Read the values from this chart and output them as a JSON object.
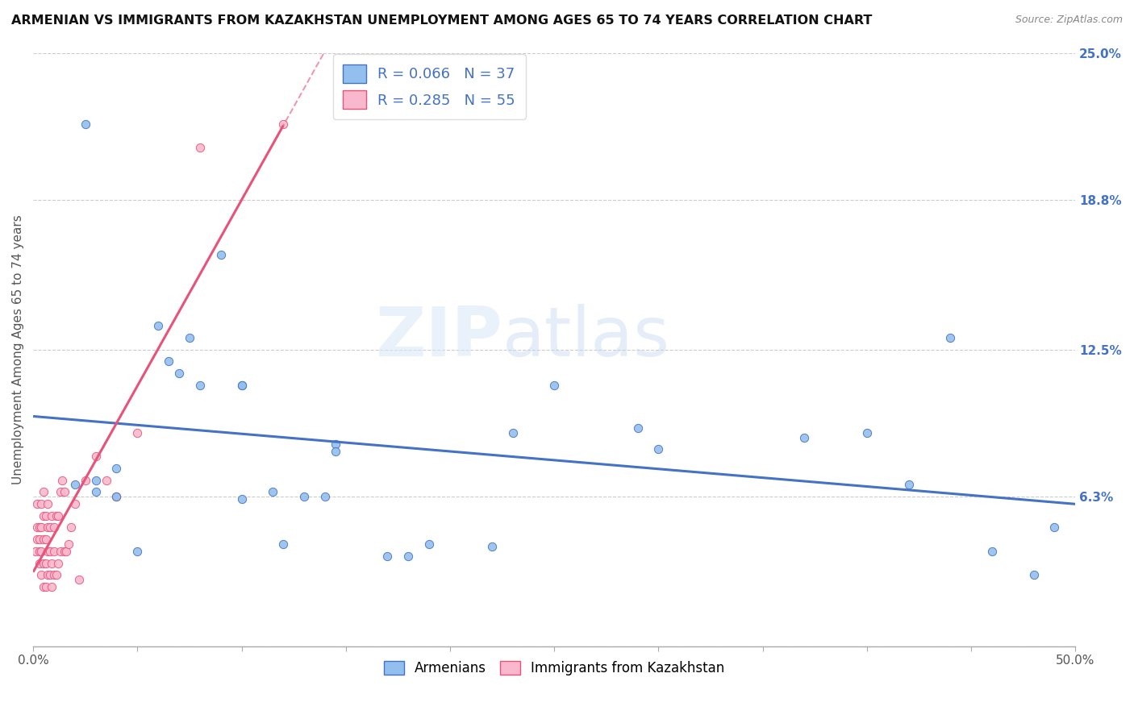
{
  "title": "ARMENIAN VS IMMIGRANTS FROM KAZAKHSTAN UNEMPLOYMENT AMONG AGES 65 TO 74 YEARS CORRELATION CHART",
  "source": "Source: ZipAtlas.com",
  "ylabel": "Unemployment Among Ages 65 to 74 years",
  "xlim": [
    0.0,
    0.5
  ],
  "ylim": [
    0.0,
    0.25
  ],
  "xticks": [
    0.0,
    0.05,
    0.1,
    0.15,
    0.2,
    0.25,
    0.3,
    0.35,
    0.4,
    0.45,
    0.5
  ],
  "xtick_labels_show": [
    "0.0%",
    "",
    "",
    "",
    "",
    "",
    "",
    "",
    "",
    "",
    "50.0%"
  ],
  "ytick_labels_right": [
    "",
    "6.3%",
    "12.5%",
    "18.8%",
    "25.0%"
  ],
  "yticks_right": [
    0.0,
    0.063,
    0.125,
    0.188,
    0.25
  ],
  "R_armenian": 0.066,
  "N_armenian": 37,
  "R_kazakhstan": 0.285,
  "N_kazakhstan": 55,
  "color_armenian": "#92BFED",
  "color_kazakhstan": "#F9B8CD",
  "color_line_armenian": "#4472C4",
  "color_line_kazakhstan": "#E8537A",
  "legend_armenian": "Armenians",
  "legend_kazakhstan": "Immigrants from Kazakhstan",
  "background_color": "#FFFFFF",
  "armenian_x": [
    0.02,
    0.025,
    0.03,
    0.03,
    0.04,
    0.04,
    0.05,
    0.06,
    0.065,
    0.07,
    0.075,
    0.08,
    0.09,
    0.1,
    0.1,
    0.1,
    0.115,
    0.12,
    0.13,
    0.14,
    0.145,
    0.145,
    0.17,
    0.18,
    0.19,
    0.22,
    0.23,
    0.25,
    0.29,
    0.3,
    0.37,
    0.4,
    0.42,
    0.44,
    0.46,
    0.48,
    0.49
  ],
  "armenian_y": [
    0.068,
    0.22,
    0.07,
    0.065,
    0.075,
    0.063,
    0.04,
    0.135,
    0.12,
    0.115,
    0.13,
    0.11,
    0.165,
    0.11,
    0.11,
    0.062,
    0.065,
    0.043,
    0.063,
    0.063,
    0.085,
    0.082,
    0.038,
    0.038,
    0.043,
    0.042,
    0.09,
    0.11,
    0.092,
    0.083,
    0.088,
    0.09,
    0.068,
    0.13,
    0.04,
    0.03,
    0.05
  ],
  "kazakhstan_x": [
    0.001,
    0.002,
    0.002,
    0.002,
    0.003,
    0.003,
    0.003,
    0.003,
    0.004,
    0.004,
    0.004,
    0.004,
    0.005,
    0.005,
    0.005,
    0.005,
    0.005,
    0.006,
    0.006,
    0.006,
    0.006,
    0.007,
    0.007,
    0.007,
    0.007,
    0.008,
    0.008,
    0.008,
    0.009,
    0.009,
    0.009,
    0.01,
    0.01,
    0.01,
    0.011,
    0.011,
    0.012,
    0.012,
    0.013,
    0.013,
    0.014,
    0.015,
    0.015,
    0.016,
    0.017,
    0.018,
    0.02,
    0.022,
    0.025,
    0.03,
    0.035,
    0.04,
    0.05,
    0.08,
    0.12
  ],
  "kazakhstan_y": [
    0.04,
    0.05,
    0.045,
    0.06,
    0.035,
    0.04,
    0.045,
    0.05,
    0.03,
    0.04,
    0.05,
    0.06,
    0.025,
    0.035,
    0.045,
    0.055,
    0.065,
    0.025,
    0.035,
    0.045,
    0.055,
    0.03,
    0.04,
    0.05,
    0.06,
    0.03,
    0.04,
    0.05,
    0.025,
    0.035,
    0.055,
    0.03,
    0.04,
    0.05,
    0.03,
    0.055,
    0.035,
    0.055,
    0.04,
    0.065,
    0.07,
    0.04,
    0.065,
    0.04,
    0.043,
    0.05,
    0.06,
    0.028,
    0.07,
    0.08,
    0.07,
    0.063,
    0.09,
    0.21,
    0.22
  ],
  "kaz_trend_x_start": 0.0,
  "kaz_trend_x_end": 0.5,
  "arm_trend_x_start": 0.0,
  "arm_trend_x_end": 0.5
}
